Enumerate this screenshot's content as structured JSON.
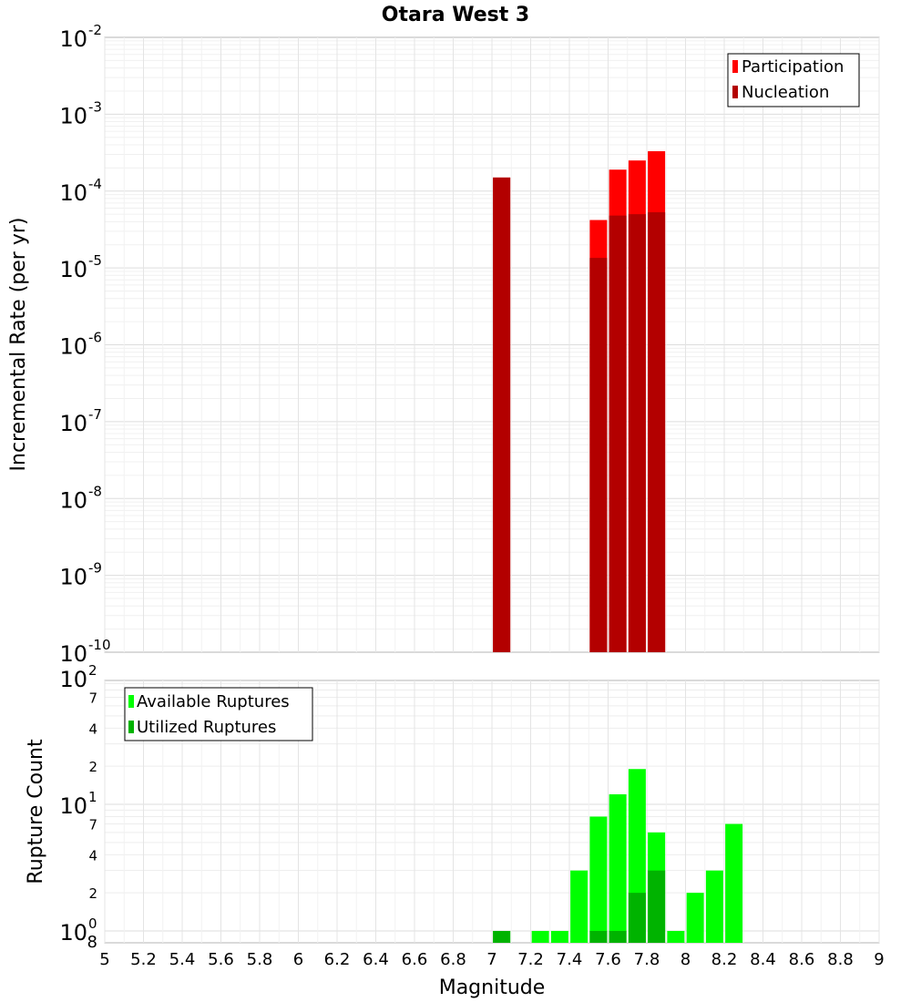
{
  "chart_data": [
    {
      "type": "bar",
      "title": "Otara West 3",
      "ylabel": "Incremental Rate (per yr)",
      "xlabel": "",
      "xlim": [
        5,
        9
      ],
      "ylim_log10": [
        -10,
        -2
      ],
      "yscale": "log",
      "y_tick_labels": [
        {
          "base": "10",
          "exp": "-2"
        },
        {
          "base": "10",
          "exp": "-3"
        },
        {
          "base": "10",
          "exp": "-4"
        },
        {
          "base": "10",
          "exp": "-5"
        },
        {
          "base": "10",
          "exp": "-6"
        },
        {
          "base": "10",
          "exp": "-7"
        },
        {
          "base": "10",
          "exp": "-8"
        },
        {
          "base": "10",
          "exp": "-9"
        },
        {
          "base": "10",
          "exp": "-10"
        }
      ],
      "legend": [
        "Participation",
        "Nucleation"
      ],
      "legend_position": "top-right",
      "series": [
        {
          "name": "Participation",
          "color": "#ff0000",
          "points": [
            [
              7.05,
              0.00015
            ],
            [
              7.55,
              4.2e-05
            ],
            [
              7.65,
              0.00019
            ],
            [
              7.75,
              0.00025
            ],
            [
              7.85,
              0.00033
            ]
          ]
        },
        {
          "name": "Nucleation",
          "color": "#b30000",
          "points": [
            [
              7.05,
              0.00015
            ],
            [
              7.55,
              1.35e-05
            ],
            [
              7.65,
              4.8e-05
            ],
            [
              7.75,
              5e-05
            ],
            [
              7.85,
              5.3e-05
            ]
          ]
        }
      ]
    },
    {
      "type": "bar",
      "title": "",
      "ylabel": "Rupture Count",
      "xlabel": "Magnitude",
      "xlim": [
        5,
        9
      ],
      "yscale": "log",
      "y_tick_labels": [
        {
          "base": "10",
          "exp": "2"
        },
        {
          "value": "7"
        },
        {
          "value": "4"
        },
        {
          "value": "2"
        },
        {
          "base": "10",
          "exp": "1"
        },
        {
          "value": "7"
        },
        {
          "value": "4"
        },
        {
          "value": "2"
        },
        {
          "base": "10",
          "exp": "0"
        },
        {
          "value": "8"
        }
      ],
      "x_ticks": [
        "5",
        "5.2",
        "5.4",
        "5.6",
        "5.8",
        "6",
        "6.2",
        "6.4",
        "6.6",
        "6.8",
        "7",
        "7.2",
        "7.4",
        "7.6",
        "7.8",
        "8",
        "8.2",
        "8.4",
        "8.6",
        "8.8",
        "9"
      ],
      "legend": [
        "Available Ruptures",
        "Utilized Ruptures"
      ],
      "legend_position": "top-left",
      "series": [
        {
          "name": "Available Ruptures",
          "color": "#00ff00",
          "points": [
            [
              7.05,
              1
            ],
            [
              7.25,
              1
            ],
            [
              7.35,
              1
            ],
            [
              7.45,
              3
            ],
            [
              7.55,
              8
            ],
            [
              7.65,
              12
            ],
            [
              7.75,
              19
            ],
            [
              7.85,
              6
            ],
            [
              7.95,
              1
            ],
            [
              8.05,
              2
            ],
            [
              8.15,
              3
            ],
            [
              8.25,
              7
            ]
          ]
        },
        {
          "name": "Utilized Ruptures",
          "color": "#00b300",
          "points": [
            [
              7.05,
              1
            ],
            [
              7.55,
              1
            ],
            [
              7.65,
              1
            ],
            [
              7.75,
              2
            ],
            [
              7.85,
              3
            ]
          ]
        }
      ]
    }
  ]
}
